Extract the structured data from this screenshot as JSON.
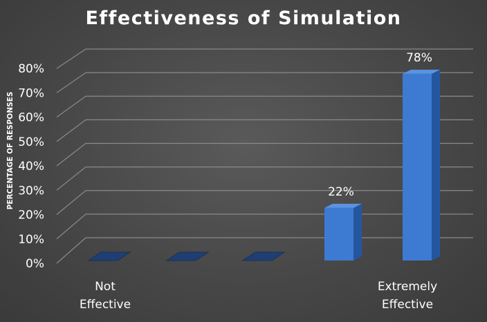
{
  "chart_data": {
    "type": "bar",
    "title": "Effectiveness of Simulation",
    "ylabel": "PERCENTAGE OF RESPONSES",
    "xlabel": "",
    "categories": [
      "Not Effective",
      "",
      "",
      "",
      "Extremely Effective"
    ],
    "category_lines": [
      [
        "Not",
        "Effective"
      ],
      [],
      [],
      [],
      [
        "Extremely",
        "Effective"
      ]
    ],
    "values": [
      0,
      0,
      0,
      22,
      78
    ],
    "data_labels": [
      "",
      "",
      "",
      "22%",
      "78%"
    ],
    "ylim": [
      0,
      80
    ],
    "yticks": [
      0,
      10,
      20,
      30,
      40,
      50,
      60,
      70,
      80
    ],
    "ytick_labels": [
      "0%",
      "10%",
      "20%",
      "30%",
      "40%",
      "50%",
      "60%",
      "70%",
      "80%"
    ],
    "grid": true,
    "legend": "none",
    "colors": {
      "bar_front": "#3d7bd3",
      "bar_side": "#2456a0",
      "bar_top": "#5b93e0",
      "empty_bar": "#1f3f73",
      "grid": "#8a8a8a"
    }
  }
}
